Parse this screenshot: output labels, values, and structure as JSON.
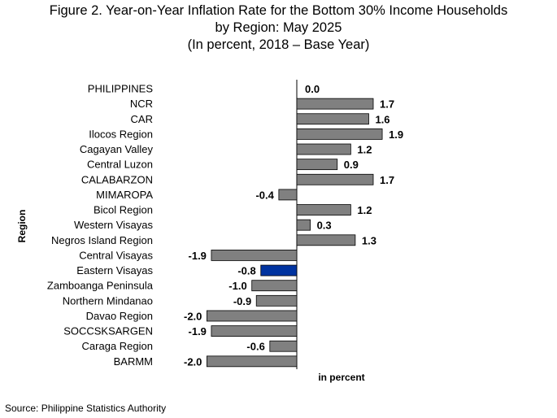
{
  "chart_data": {
    "type": "bar",
    "orientation": "horizontal",
    "title": [
      "Figure 2. Year-on-Year Inflation Rate for the Bottom 30% Income Households",
      "by Region: May 2025",
      "(In percent, 2018 – Base Year)"
    ],
    "xlabel": "in percent",
    "ylabel": "Region",
    "categories": [
      "PHILIPPINES",
      "NCR",
      "CAR",
      "Ilocos Region",
      "Cagayan Valley",
      "Central Luzon",
      "CALABARZON",
      "MIMAROPA",
      "Bicol Region",
      "Western Visayas",
      "Negros Island Region",
      "Central Visayas",
      "Eastern Visayas",
      "Zamboanga Peninsula",
      "Northern Mindanao",
      "Davao Region",
      "SOCCSKSARGEN",
      "Caraga Region",
      "BARMM"
    ],
    "values": [
      0.0,
      1.7,
      1.6,
      1.9,
      1.2,
      0.9,
      1.7,
      -0.4,
      1.2,
      0.3,
      1.3,
      -1.9,
      -0.8,
      -1.0,
      -0.9,
      -2.0,
      -1.9,
      -0.6,
      -2.0
    ],
    "value_labels": [
      "0.0",
      "1.7",
      "1.6",
      "1.9",
      "1.2",
      "0.9",
      "1.7",
      "-0.4",
      "1.2",
      "0.3",
      "1.3",
      "-1.9",
      "-0.8",
      "-1.0",
      "-0.9",
      "-2.0",
      "-1.9",
      "-0.6",
      "-2.0"
    ],
    "highlight_category": "Eastern Visayas",
    "colors": {
      "bar": "#808080",
      "highlight": "#0033a0",
      "bar_edge": "#000000",
      "axis": "#000000"
    },
    "grid": false,
    "legend": "none"
  },
  "source": "Source: Philippine Statistics Authority"
}
